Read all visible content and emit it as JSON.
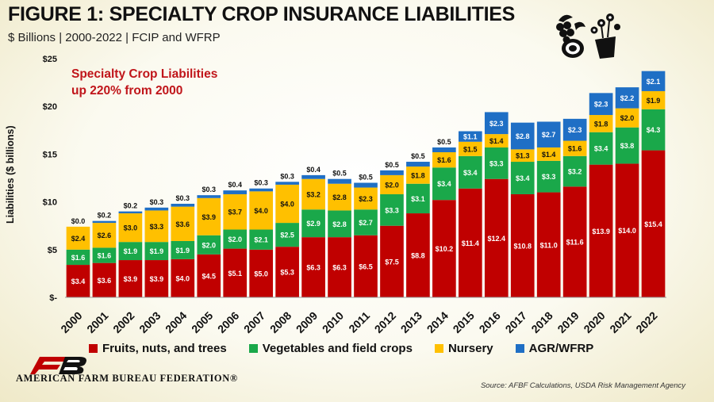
{
  "title": "FIGURE 1: SPECIALTY CROP INSURANCE LIABILITIES",
  "subtitle": "$ Billions | 2000-2022 | FCIP and WFRP",
  "annotation": [
    "Specialty Crop Liabilities",
    "up 220% from 2000"
  ],
  "source": "Source: AFBF Calculations, USDA Risk Management Agency",
  "logo_text": "AMERICAN FARM BUREAU FEDERATION®",
  "icons": [
    "fruit-vegetable-icon",
    "potted-flower-icon"
  ],
  "chart_data": {
    "type": "bar",
    "stacked": true,
    "ylabel": "Liabilities ($ billions)",
    "ylim": [
      0,
      25
    ],
    "yticks": [
      0,
      5,
      10,
      15,
      20,
      25
    ],
    "ytick_labels": [
      "$-",
      "$5",
      "$10",
      "$15",
      "$20",
      "$25"
    ],
    "grid": false,
    "legend_position": "bottom",
    "categories": [
      "2000",
      "2001",
      "2002",
      "2003",
      "2004",
      "2005",
      "2006",
      "2007",
      "2008",
      "2009",
      "2010",
      "2011",
      "2012",
      "2013",
      "2014",
      "2015",
      "2016",
      "2017",
      "2018",
      "2019",
      "2020",
      "2021",
      "2022"
    ],
    "series": [
      {
        "name": "Fruits, nuts, and trees",
        "color": "#c00000",
        "values": [
          3.4,
          3.6,
          3.9,
          3.9,
          4.0,
          4.5,
          5.1,
          5.0,
          5.3,
          6.3,
          6.3,
          6.5,
          7.5,
          8.8,
          10.2,
          11.4,
          12.4,
          10.8,
          11.0,
          11.6,
          13.9,
          14.0,
          15.4
        ],
        "labels": [
          "$3.4",
          "$3.6",
          "$3.9",
          "$3.9",
          "$4.0",
          "$4.5",
          "$5.1",
          "$5.0",
          "$5.3",
          "$6.3",
          "$6.3",
          "$6.5",
          "$7.5",
          "$8.8",
          "$10.2",
          "$11.4",
          "$12.4",
          "$10.8",
          "$11.0",
          "$11.6",
          "$13.9",
          "$14.0",
          "$15.4"
        ]
      },
      {
        "name": "Vegetables and field crops",
        "color": "#1aa84a",
        "values": [
          1.6,
          1.6,
          1.9,
          1.9,
          1.9,
          2.0,
          2.0,
          2.1,
          2.5,
          2.9,
          2.8,
          2.7,
          3.3,
          3.1,
          3.4,
          3.4,
          3.3,
          3.4,
          3.3,
          3.2,
          3.4,
          3.8,
          4.3
        ],
        "labels": [
          "$1.6",
          "$1.6",
          "$1.9",
          "$1.9",
          "$1.9",
          "$2.0",
          "$2.0",
          "$2.1",
          "$2.5",
          "$2.9",
          "$2.8",
          "$2.7",
          "$3.3",
          "$3.1",
          "$3.4",
          "$3.4",
          "$3.3",
          "$3.4",
          "$3.3",
          "$3.2",
          "$3.4",
          "$3.8",
          "$4.3"
        ]
      },
      {
        "name": "Nursery",
        "color": "#ffc000",
        "values": [
          2.4,
          2.6,
          3.0,
          3.3,
          3.6,
          3.9,
          3.7,
          4.0,
          4.0,
          3.2,
          2.8,
          2.3,
          2.0,
          1.8,
          1.6,
          1.5,
          1.4,
          1.3,
          1.4,
          1.6,
          1.8,
          2.0,
          1.9
        ],
        "labels": [
          "$2.4",
          "$2.6",
          "$3.0",
          "$3.3",
          "$3.6",
          "$3.9",
          "$3.7",
          "$4.0",
          "$4.0",
          "$3.2",
          "$2.8",
          "$2.3",
          "$2.0",
          "$1.8",
          "$1.6",
          "$1.5",
          "$1.4",
          "$1.3",
          "$1.4",
          "$1.6",
          "$1.8",
          "$2.0",
          "$1.9"
        ]
      },
      {
        "name": "AGR/WFRP",
        "color": "#1f6fc5",
        "values": [
          0.0,
          0.2,
          0.2,
          0.3,
          0.3,
          0.3,
          0.4,
          0.3,
          0.3,
          0.4,
          0.5,
          0.5,
          0.5,
          0.5,
          0.5,
          1.1,
          2.3,
          2.8,
          2.7,
          2.3,
          2.3,
          2.2,
          2.1
        ],
        "labels": [
          "$0.0",
          "$0.2",
          "$0.2",
          "$0.3",
          "$0.3",
          "$0.3",
          "$0.4",
          "$0.3",
          "$0.3",
          "$0.4",
          "$0.5",
          "$0.5",
          "$0.5",
          "$0.5",
          "$0.5",
          "$1.1",
          "$2.3",
          "$2.8",
          "$2.7",
          "$2.3",
          "$2.3",
          "$2.2",
          "$2.1"
        ]
      }
    ]
  }
}
